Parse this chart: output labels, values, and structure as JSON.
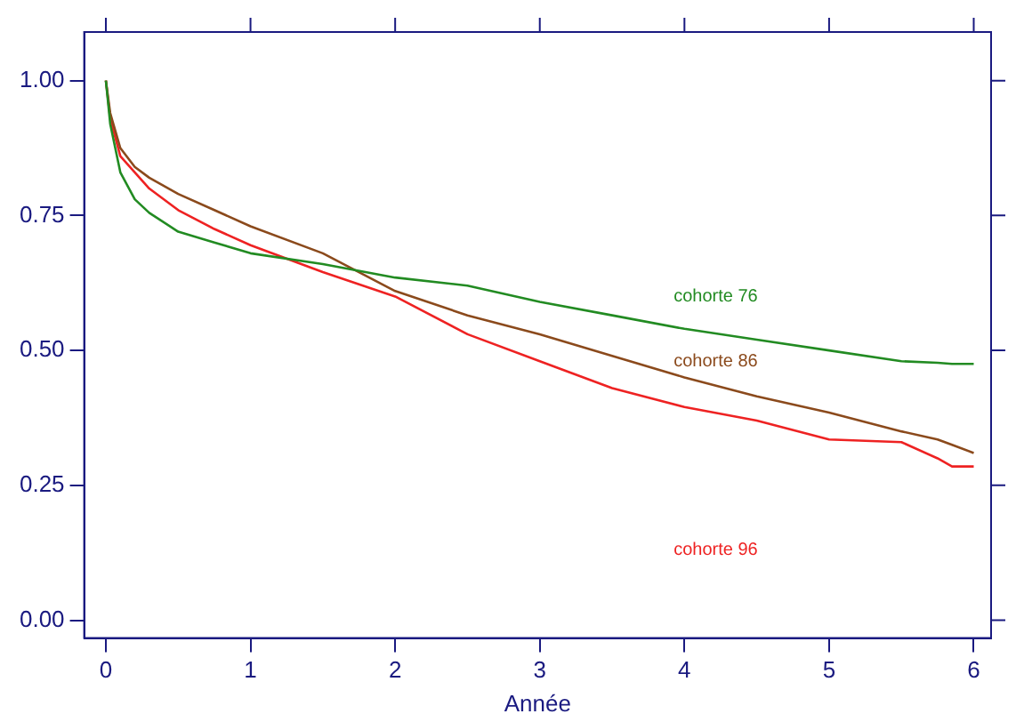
{
  "chart_data": {
    "type": "line",
    "xlabel": "Année",
    "xlim": [
      -0.15,
      6.12
    ],
    "xticks": [
      0,
      1,
      2,
      3,
      4,
      5,
      6
    ],
    "ylim": [
      -0.033,
      1.09
    ],
    "yticks": [
      {
        "value": 0,
        "label": "0.00"
      },
      {
        "value": 0.25,
        "label": "0.25"
      },
      {
        "value": 0.5,
        "label": "0.50"
      },
      {
        "value": 0.75,
        "label": "0.75"
      },
      {
        "value": 1,
        "label": "1.00"
      }
    ],
    "grid": false,
    "legend": false,
    "marker": "none",
    "line_style": "solid",
    "x": [
      0,
      0.03,
      0.1,
      0.2,
      0.3,
      0.5,
      0.75,
      1,
      1.5,
      2,
      2.5,
      3,
      3.5,
      4,
      4.5,
      5,
      5.5,
      5.75,
      5.85,
      6
    ],
    "series": [
      {
        "name": "cohorte 76",
        "color": "#228b22",
        "values": [
          1,
          0.92,
          0.83,
          0.78,
          0.755,
          0.72,
          0.7,
          0.68,
          0.66,
          0.635,
          0.62,
          0.59,
          0.565,
          0.54,
          0.52,
          0.5,
          0.48,
          0.477,
          0.475,
          0.475
        ]
      },
      {
        "name": "cohorte 86",
        "color": "#8b4a1c",
        "values": [
          1,
          0.94,
          0.875,
          0.84,
          0.82,
          0.79,
          0.76,
          0.73,
          0.68,
          0.61,
          0.565,
          0.53,
          0.49,
          0.45,
          0.415,
          0.385,
          0.35,
          0.335,
          0.325,
          0.31
        ]
      },
      {
        "name": "cohorte 96",
        "color": "#ee2222",
        "values": [
          1,
          0.93,
          0.86,
          0.83,
          0.8,
          0.76,
          0.725,
          0.695,
          0.645,
          0.6,
          0.53,
          0.48,
          0.43,
          0.395,
          0.37,
          0.335,
          0.33,
          0.3,
          0.285,
          0.285
        ]
      }
    ]
  }
}
